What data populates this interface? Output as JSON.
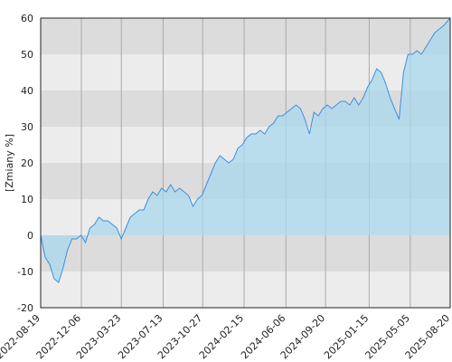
{
  "chart_data": {
    "type": "area",
    "y_label": "[Zmiany %]",
    "x": [
      "2022-08-19",
      "2022-08-31",
      "2022-09-12",
      "2022-09-24",
      "2022-10-06",
      "2022-10-18",
      "2022-10-30",
      "2022-11-11",
      "2022-11-23",
      "2022-12-05",
      "2022-12-17",
      "2022-12-29",
      "2023-01-10",
      "2023-01-22",
      "2023-02-03",
      "2023-02-15",
      "2023-02-27",
      "2023-03-11",
      "2023-03-23",
      "2023-04-04",
      "2023-04-16",
      "2023-04-28",
      "2023-05-10",
      "2023-05-22",
      "2023-06-03",
      "2023-06-15",
      "2023-06-27",
      "2023-07-09",
      "2023-07-21",
      "2023-08-02",
      "2023-08-14",
      "2023-08-26",
      "2023-09-07",
      "2023-09-19",
      "2023-10-01",
      "2023-10-13",
      "2023-10-25",
      "2023-11-06",
      "2023-11-18",
      "2023-11-30",
      "2023-12-12",
      "2023-12-24",
      "2024-01-05",
      "2024-01-17",
      "2024-01-29",
      "2024-02-10",
      "2024-02-22",
      "2024-03-05",
      "2024-03-17",
      "2024-03-29",
      "2024-04-10",
      "2024-04-22",
      "2024-05-04",
      "2024-05-16",
      "2024-05-28",
      "2024-06-09",
      "2024-06-21",
      "2024-07-03",
      "2024-07-15",
      "2024-07-27",
      "2024-08-08",
      "2024-08-20",
      "2024-09-01",
      "2024-09-13",
      "2024-09-25",
      "2024-10-07",
      "2024-10-19",
      "2024-10-31",
      "2024-11-12",
      "2024-11-24",
      "2024-12-06",
      "2024-12-18",
      "2024-12-30",
      "2025-01-11",
      "2025-01-23",
      "2025-02-04",
      "2025-02-16",
      "2025-02-28",
      "2025-03-12",
      "2025-03-24",
      "2025-04-05",
      "2025-04-17",
      "2025-04-29",
      "2025-05-11",
      "2025-05-23",
      "2025-06-04",
      "2025-06-16",
      "2025-06-28",
      "2025-07-10",
      "2025-07-22",
      "2025-08-03",
      "2025-08-20"
    ],
    "values": [
      0,
      -6,
      -8,
      -12,
      -13,
      -9,
      -4,
      -1,
      -1,
      0,
      -2,
      2,
      3,
      5,
      4,
      4,
      3,
      2,
      -1,
      2,
      5,
      6,
      7,
      7,
      10,
      12,
      11,
      13,
      12,
      14,
      12,
      13,
      12,
      11,
      8,
      10,
      11,
      14,
      17,
      20,
      22,
      21,
      20,
      21,
      24,
      25,
      27,
      28,
      28,
      29,
      28,
      30,
      31,
      33,
      33,
      34,
      35,
      36,
      35,
      32,
      28,
      34,
      33,
      35,
      36,
      35,
      36,
      37,
      37,
      36,
      38,
      36,
      38,
      41,
      43,
      46,
      45,
      42,
      38,
      35,
      32,
      45,
      50,
      50,
      51,
      50,
      52,
      54,
      56,
      57,
      58,
      60
    ],
    "color": "#3d8fdc",
    "fill_color": "#a9d8ef",
    "xlim": [
      "2022-08-19",
      "2025-08-20"
    ],
    "xticks": [
      "2022-08-19",
      "2022-12-06",
      "2023-03-23",
      "2023-07-13",
      "2023-10-27",
      "2024-02-15",
      "2024-06-06",
      "2024-09-20",
      "2025-01-15",
      "2025-05-05",
      "2025-08-20"
    ],
    "ylim": [
      -20,
      60
    ],
    "yticks": [
      -20,
      -10,
      0,
      10,
      20,
      30,
      40,
      50,
      60
    ],
    "grid": true,
    "band_colors": [
      "#ececec",
      "#dcdcdc"
    ]
  }
}
